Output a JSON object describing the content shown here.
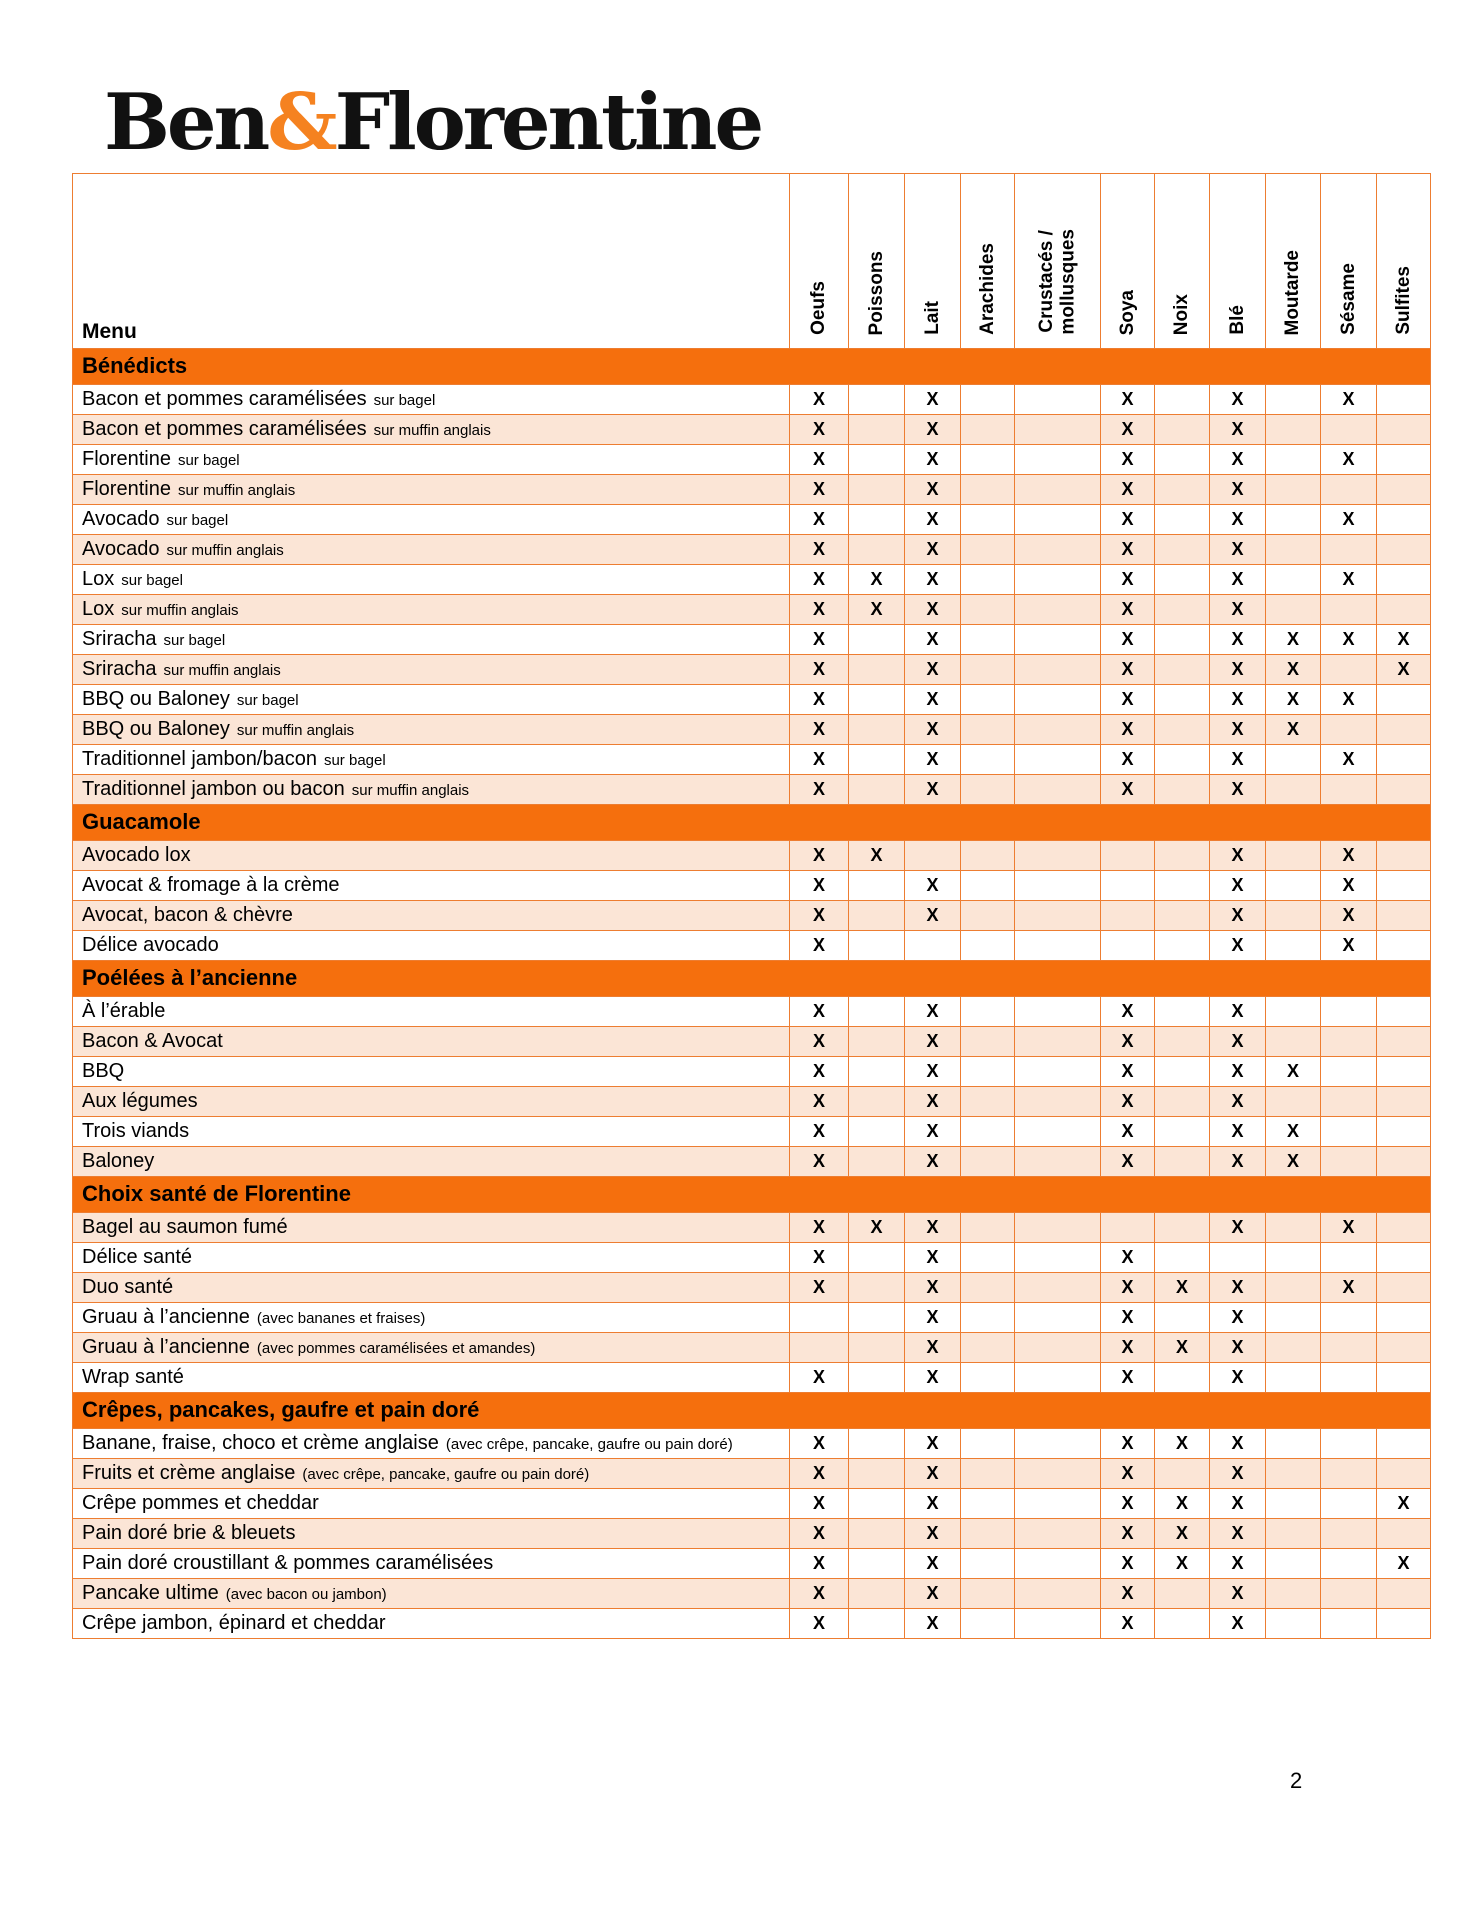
{
  "logo": {
    "part1": "Ben",
    "amp": "&",
    "part2": "Florentine"
  },
  "page": {
    "number": "2"
  },
  "colors": {
    "accent": "#F56F0D",
    "band": "#FBE5D6",
    "border": "#ED7D31",
    "amp": "#F58220"
  },
  "table": {
    "menu_header": "Menu",
    "mark": "X",
    "columns": [
      "Oeufs",
      "Poissons",
      "Lait",
      "Arachides",
      "Crustacés /\nmollusques",
      "Soya",
      "Noix",
      "Blé",
      "Moutarde",
      "Sésame",
      "Sulfites"
    ],
    "sections": [
      {
        "title": "Bénédicts",
        "rows": [
          {
            "label": "Bacon et pommes caramélisées",
            "note": "sur bagel",
            "marks": [
              1,
              0,
              1,
              0,
              0,
              1,
              0,
              1,
              0,
              1,
              0
            ]
          },
          {
            "label": "Bacon et pommes caramélisées",
            "note": "sur muffin anglais",
            "marks": [
              1,
              0,
              1,
              0,
              0,
              1,
              0,
              1,
              0,
              0,
              0
            ]
          },
          {
            "label": "Florentine",
            "note": "sur bagel",
            "marks": [
              1,
              0,
              1,
              0,
              0,
              1,
              0,
              1,
              0,
              1,
              0
            ]
          },
          {
            "label": "Florentine",
            "note": "sur muffin anglais",
            "marks": [
              1,
              0,
              1,
              0,
              0,
              1,
              0,
              1,
              0,
              0,
              0
            ]
          },
          {
            "label": "Avocado",
            "note": "sur bagel",
            "marks": [
              1,
              0,
              1,
              0,
              0,
              1,
              0,
              1,
              0,
              1,
              0
            ]
          },
          {
            "label": "Avocado",
            "note": "sur muffin anglais",
            "marks": [
              1,
              0,
              1,
              0,
              0,
              1,
              0,
              1,
              0,
              0,
              0
            ]
          },
          {
            "label": "Lox",
            "note": "sur bagel",
            "marks": [
              1,
              1,
              1,
              0,
              0,
              1,
              0,
              1,
              0,
              1,
              0
            ]
          },
          {
            "label": "Lox",
            "note": "sur muffin anglais",
            "marks": [
              1,
              1,
              1,
              0,
              0,
              1,
              0,
              1,
              0,
              0,
              0
            ]
          },
          {
            "label": "Sriracha",
            "note": "sur bagel",
            "marks": [
              1,
              0,
              1,
              0,
              0,
              1,
              0,
              1,
              1,
              1,
              1
            ]
          },
          {
            "label": "Sriracha",
            "note": "sur muffin anglais",
            "marks": [
              1,
              0,
              1,
              0,
              0,
              1,
              0,
              1,
              1,
              0,
              1
            ]
          },
          {
            "label": "BBQ ou Baloney",
            "note": "sur bagel",
            "marks": [
              1,
              0,
              1,
              0,
              0,
              1,
              0,
              1,
              1,
              1,
              0
            ]
          },
          {
            "label": "BBQ ou Baloney",
            "note": "sur muffin anglais",
            "marks": [
              1,
              0,
              1,
              0,
              0,
              1,
              0,
              1,
              1,
              0,
              0
            ]
          },
          {
            "label": "Traditionnel jambon/bacon",
            "note": "sur bagel",
            "marks": [
              1,
              0,
              1,
              0,
              0,
              1,
              0,
              1,
              0,
              1,
              0
            ]
          },
          {
            "label": "Traditionnel jambon ou bacon",
            "note": "sur muffin anglais",
            "marks": [
              1,
              0,
              1,
              0,
              0,
              1,
              0,
              1,
              0,
              0,
              0
            ]
          }
        ]
      },
      {
        "title": "Guacamole",
        "rows": [
          {
            "label": "Avocado lox",
            "note": "",
            "marks": [
              1,
              1,
              0,
              0,
              0,
              0,
              0,
              1,
              0,
              1,
              0
            ]
          },
          {
            "label": "Avocat & fromage à la crème",
            "note": "",
            "marks": [
              1,
              0,
              1,
              0,
              0,
              0,
              0,
              1,
              0,
              1,
              0
            ]
          },
          {
            "label": "Avocat, bacon & chèvre",
            "note": "",
            "marks": [
              1,
              0,
              1,
              0,
              0,
              0,
              0,
              1,
              0,
              1,
              0
            ]
          },
          {
            "label": "Délice avocado",
            "note": "",
            "marks": [
              1,
              0,
              0,
              0,
              0,
              0,
              0,
              1,
              0,
              1,
              0
            ]
          }
        ]
      },
      {
        "title": "Poélées à l’ancienne",
        "rows": [
          {
            "label": "À l’érable",
            "note": "",
            "marks": [
              1,
              0,
              1,
              0,
              0,
              1,
              0,
              1,
              0,
              0,
              0
            ]
          },
          {
            "label": "Bacon & Avocat",
            "note": "",
            "marks": [
              1,
              0,
              1,
              0,
              0,
              1,
              0,
              1,
              0,
              0,
              0
            ]
          },
          {
            "label": "BBQ",
            "note": "",
            "marks": [
              1,
              0,
              1,
              0,
              0,
              1,
              0,
              1,
              1,
              0,
              0
            ]
          },
          {
            "label": "Aux légumes",
            "note": "",
            "marks": [
              1,
              0,
              1,
              0,
              0,
              1,
              0,
              1,
              0,
              0,
              0
            ]
          },
          {
            "label": "Trois viands",
            "note": "",
            "marks": [
              1,
              0,
              1,
              0,
              0,
              1,
              0,
              1,
              1,
              0,
              0
            ]
          },
          {
            "label": "Baloney",
            "note": "",
            "marks": [
              1,
              0,
              1,
              0,
              0,
              1,
              0,
              1,
              1,
              0,
              0
            ]
          }
        ]
      },
      {
        "title": "Choix santé de Florentine",
        "rows": [
          {
            "label": "Bagel au saumon fumé",
            "note": "",
            "marks": [
              1,
              1,
              1,
              0,
              0,
              0,
              0,
              1,
              0,
              1,
              0
            ]
          },
          {
            "label": "Délice santé",
            "note": "",
            "marks": [
              1,
              0,
              1,
              0,
              0,
              1,
              0,
              0,
              0,
              0,
              0
            ]
          },
          {
            "label": "Duo santé",
            "note": "",
            "marks": [
              1,
              0,
              1,
              0,
              0,
              1,
              1,
              1,
              0,
              1,
              0
            ]
          },
          {
            "label": "Gruau à l’ancienne",
            "note": "(avec bananes et fraises)",
            "marks": [
              0,
              0,
              1,
              0,
              0,
              1,
              0,
              1,
              0,
              0,
              0
            ]
          },
          {
            "label": "Gruau à l’ancienne",
            "note": "(avec pommes caramélisées et amandes)",
            "marks": [
              0,
              0,
              1,
              0,
              0,
              1,
              1,
              1,
              0,
              0,
              0
            ]
          },
          {
            "label": "Wrap santé",
            "note": "",
            "marks": [
              1,
              0,
              1,
              0,
              0,
              1,
              0,
              1,
              0,
              0,
              0
            ]
          }
        ]
      },
      {
        "title": "Crêpes, pancakes, gaufre et pain doré",
        "rows": [
          {
            "label": "Banane, fraise, choco et crème anglaise",
            "note": "(avec crêpe, pancake, gaufre ou pain doré)",
            "marks": [
              1,
              0,
              1,
              0,
              0,
              1,
              1,
              1,
              0,
              0,
              0
            ]
          },
          {
            "label": "Fruits et crème anglaise",
            "note": "(avec crêpe, pancake, gaufre ou pain doré)",
            "marks": [
              1,
              0,
              1,
              0,
              0,
              1,
              0,
              1,
              0,
              0,
              0
            ]
          },
          {
            "label": "Crêpe pommes et cheddar",
            "note": "",
            "marks": [
              1,
              0,
              1,
              0,
              0,
              1,
              1,
              1,
              0,
              0,
              1
            ]
          },
          {
            "label": "Pain doré brie & bleuets",
            "note": "",
            "marks": [
              1,
              0,
              1,
              0,
              0,
              1,
              1,
              1,
              0,
              0,
              0
            ]
          },
          {
            "label": "Pain doré croustillant & pommes caramélisées",
            "note": "",
            "marks": [
              1,
              0,
              1,
              0,
              0,
              1,
              1,
              1,
              0,
              0,
              1
            ]
          },
          {
            "label": "Pancake ultime",
            "note": "(avec bacon ou jambon)",
            "marks": [
              1,
              0,
              1,
              0,
              0,
              1,
              0,
              1,
              0,
              0,
              0
            ]
          },
          {
            "label": "Crêpe jambon, épinard et cheddar",
            "note": "",
            "marks": [
              1,
              0,
              1,
              0,
              0,
              1,
              0,
              1,
              0,
              0,
              0
            ]
          }
        ]
      }
    ]
  }
}
